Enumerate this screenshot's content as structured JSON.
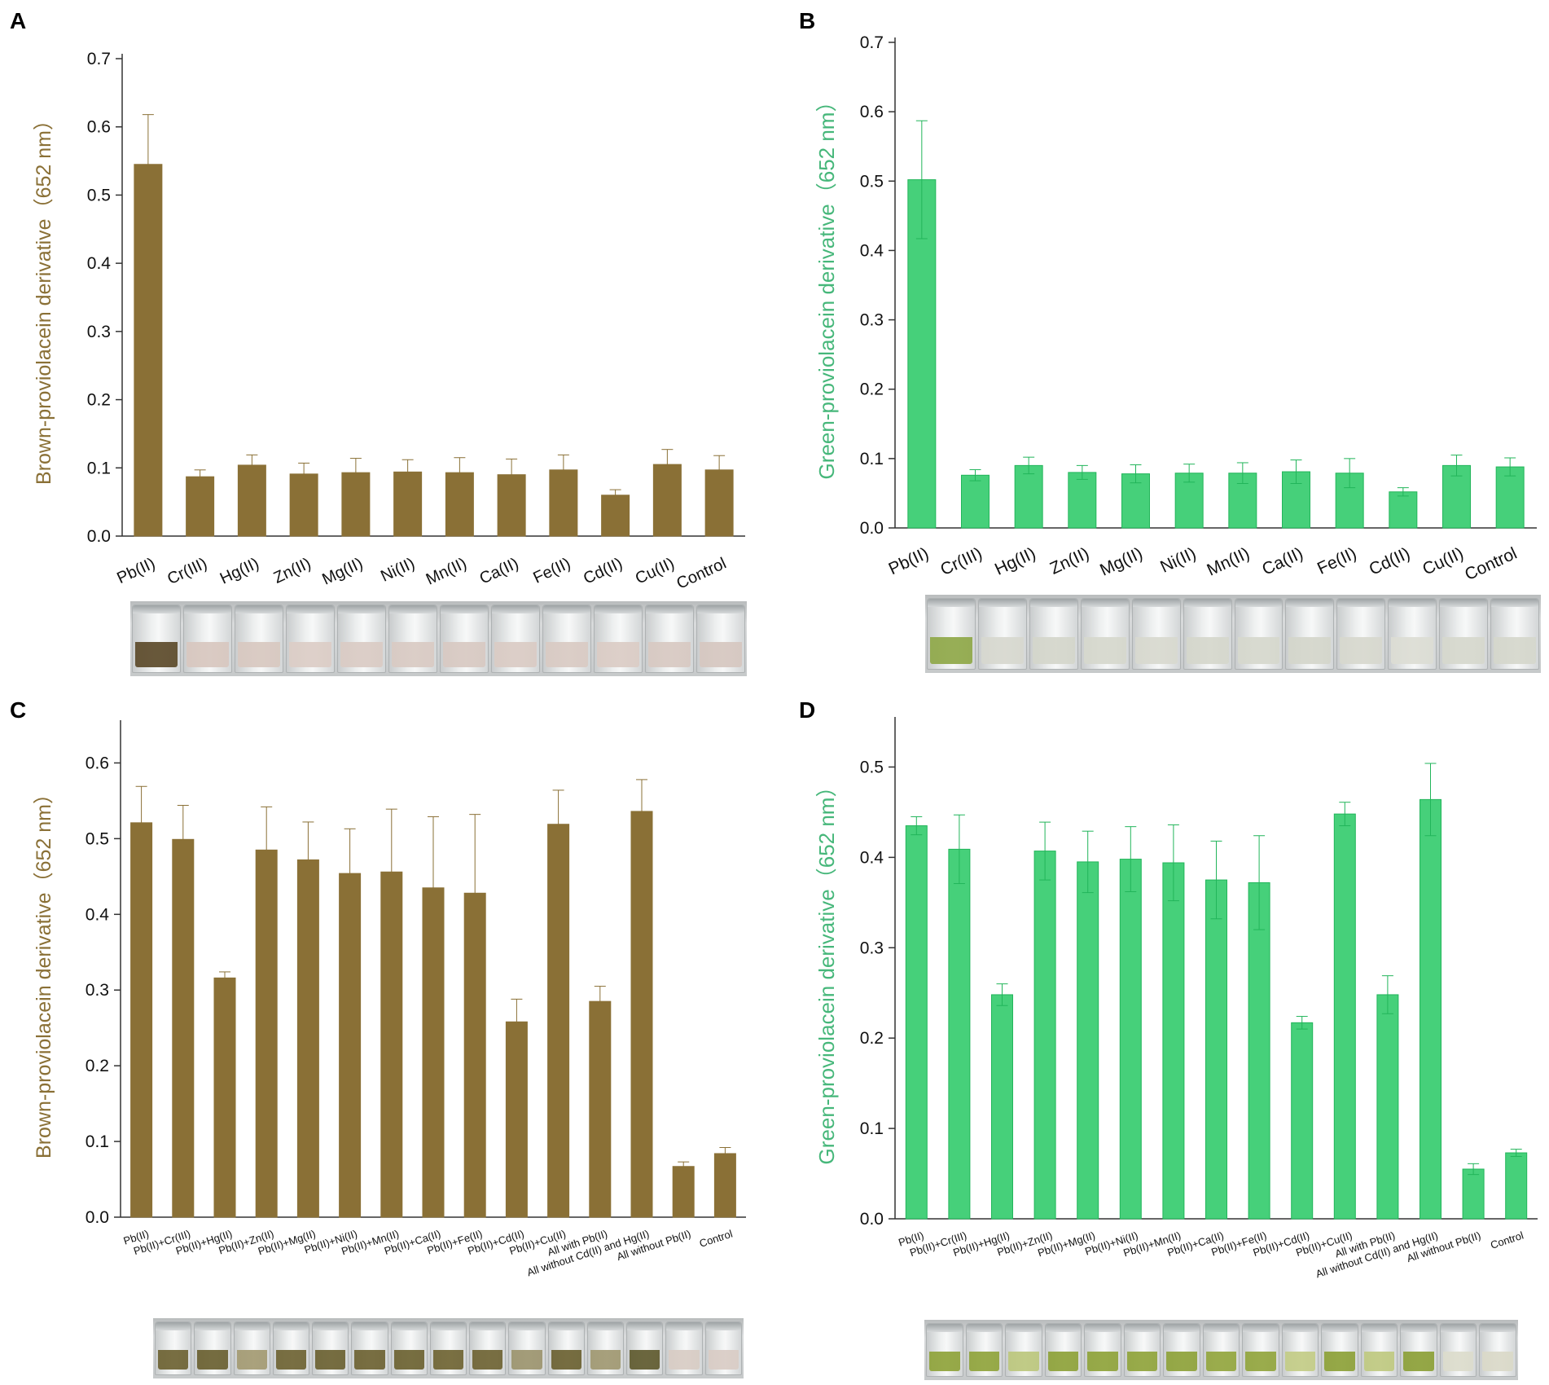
{
  "colors": {
    "brown": "#8a7036",
    "brown_label": "#8a7036",
    "green": "#46d07a",
    "green_dark": "#22b55a",
    "green_label": "#46b77a",
    "axis": "#333333"
  },
  "panels": [
    {
      "letter": "A",
      "vial_colors": [
        "#5c4a2a",
        "#d8c7bf",
        "#d8c8c0",
        "#dccdc6",
        "#dacbc4",
        "#d9cac3",
        "#d8c9c2",
        "#dacbc4",
        "#d9cac3",
        "#dbccc5",
        "#d8c9c2",
        "#d6c7c0"
      ]
    },
    {
      "letter": "B",
      "vial_colors": [
        "#8fa848",
        "#d7d8cf",
        "#d4d6cb",
        "#d6d8cd",
        "#d8d9cf",
        "#d5d7cc",
        "#d6d8cd",
        "#d4d6cb",
        "#d7d8ce",
        "#dcddd4",
        "#d6d8cd",
        "#d5d7cc"
      ]
    },
    {
      "letter": "C",
      "vial_colors": [
        "#6d6232",
        "#6a6030",
        "#a39a72",
        "#6e6333",
        "#6b6131",
        "#6d6232",
        "#6c6231",
        "#6f6433",
        "#6e6333",
        "#9c946e",
        "#6b6131",
        "#a09871",
        "#5f5a2e",
        "#d8ccc4",
        "#d9ccc5"
      ]
    },
    {
      "letter": "D",
      "vial_colors": [
        "#8fa33a",
        "#90a43b",
        "#bcc77d",
        "#8ea239",
        "#8fa33a",
        "#90a43b",
        "#8ea239",
        "#93a63e",
        "#92a53d",
        "#c3cc86",
        "#8da138",
        "#bfc980",
        "#8ca037",
        "#dcdccc",
        "#dad9c8"
      ]
    }
  ],
  "chart_data": [
    {
      "type": "bar",
      "panel": "A",
      "ylabel": "Brown-proviolacein derivative（652 nm）",
      "ylim": [
        0,
        0.7
      ],
      "yticks": [
        "0.0",
        "0.1",
        "0.2",
        "0.3",
        "0.4",
        "0.5",
        "0.6",
        "0.7"
      ],
      "categories": [
        "Pb(II)",
        "Cr(III)",
        "Hg(II)",
        "Zn(II)",
        "Mg(II)",
        "Ni(II)",
        "Mn(II)",
        "Ca(II)",
        "Fe(II)",
        "Cd(II)",
        "Cu(II)",
        "Control"
      ],
      "values": [
        0.545,
        0.087,
        0.104,
        0.091,
        0.093,
        0.094,
        0.093,
        0.09,
        0.097,
        0.06,
        0.105,
        0.097
      ],
      "errors": [
        0.073,
        0.01,
        0.015,
        0.016,
        0.021,
        0.018,
        0.022,
        0.023,
        0.022,
        0.008,
        0.022,
        0.021
      ]
    },
    {
      "type": "bar",
      "panel": "B",
      "ylabel": "Green-proviolacein derivative（652 nm）",
      "ylim": [
        0,
        0.7
      ],
      "yticks": [
        "0.0",
        "0.1",
        "0.2",
        "0.3",
        "0.4",
        "0.5",
        "0.6",
        "0.7"
      ],
      "categories": [
        "Pb(II)",
        "Cr(III)",
        "Hg(II)",
        "Zn(II)",
        "Mg(II)",
        "Ni(II)",
        "Mn(II)",
        "Ca(II)",
        "Fe(II)",
        "Cd(II)",
        "Cu(II)",
        "Control"
      ],
      "values": [
        0.502,
        0.076,
        0.09,
        0.08,
        0.078,
        0.079,
        0.079,
        0.081,
        0.079,
        0.052,
        0.09,
        0.088
      ],
      "errors": [
        0.085,
        0.008,
        0.012,
        0.01,
        0.013,
        0.013,
        0.015,
        0.017,
        0.021,
        0.006,
        0.015,
        0.013
      ]
    },
    {
      "type": "bar",
      "panel": "C",
      "ylabel": "Brown-proviolacein derivative（652 nm）",
      "ylim": [
        0,
        0.65
      ],
      "yticks": [
        "0.0",
        "0.1",
        "0.2",
        "0.3",
        "0.4",
        "0.5",
        "0.6"
      ],
      "categories": [
        "Pb(II)",
        "Pb(II)+Cr(III)",
        "Pb(II)+Hg(II)",
        "Pb(II)+Zn(II)",
        "Pb(II)+Mg(II)",
        "Pb(II)+Ni(II)",
        "Pb(II)+Mn(II)",
        "Pb(II)+Ca(II)",
        "Pb(II)+Fe(II)",
        "Pb(II)+Cd(II)",
        "Pb(II)+Cu(II)",
        "All with Pb(II)",
        "All without Cd(II) and Hg(II)",
        "All without Pb(II)",
        "Control"
      ],
      "values": [
        0.521,
        0.499,
        0.316,
        0.485,
        0.472,
        0.454,
        0.456,
        0.435,
        0.428,
        0.258,
        0.519,
        0.285,
        0.536,
        0.067,
        0.084
      ],
      "errors": [
        0.048,
        0.045,
        0.008,
        0.057,
        0.05,
        0.059,
        0.083,
        0.094,
        0.104,
        0.03,
        0.045,
        0.02,
        0.042,
        0.006,
        0.008
      ]
    },
    {
      "type": "bar",
      "panel": "D",
      "ylabel": "Green-proviolacein derivative（652 nm）",
      "ylim": [
        0,
        0.55
      ],
      "yticks": [
        "0.0",
        "0.1",
        "0.2",
        "0.3",
        "0.4",
        "0.5"
      ],
      "categories": [
        "Pb(II)",
        "Pb(II)+Cr(III)",
        "Pb(II)+Hg(II)",
        "Pb(II)+Zn(II)",
        "Pb(II)+Mg(II)",
        "Pb(II)+Ni(II)",
        "Pb(II)+Mn(II)",
        "Pb(II)+Ca(II)",
        "Pb(II)+Fe(II)",
        "Pb(II)+Cd(II)",
        "Pb(II)+Cu(II)",
        "All with Pb(II)",
        "All without Cd(II) and Hg(II)",
        "All without Pb(II)",
        "Control"
      ],
      "values": [
        0.435,
        0.409,
        0.248,
        0.407,
        0.395,
        0.398,
        0.394,
        0.375,
        0.372,
        0.217,
        0.448,
        0.248,
        0.464,
        0.055,
        0.073
      ],
      "errors": [
        0.01,
        0.038,
        0.012,
        0.032,
        0.034,
        0.036,
        0.042,
        0.043,
        0.052,
        0.007,
        0.013,
        0.021,
        0.04,
        0.006,
        0.004
      ]
    }
  ]
}
